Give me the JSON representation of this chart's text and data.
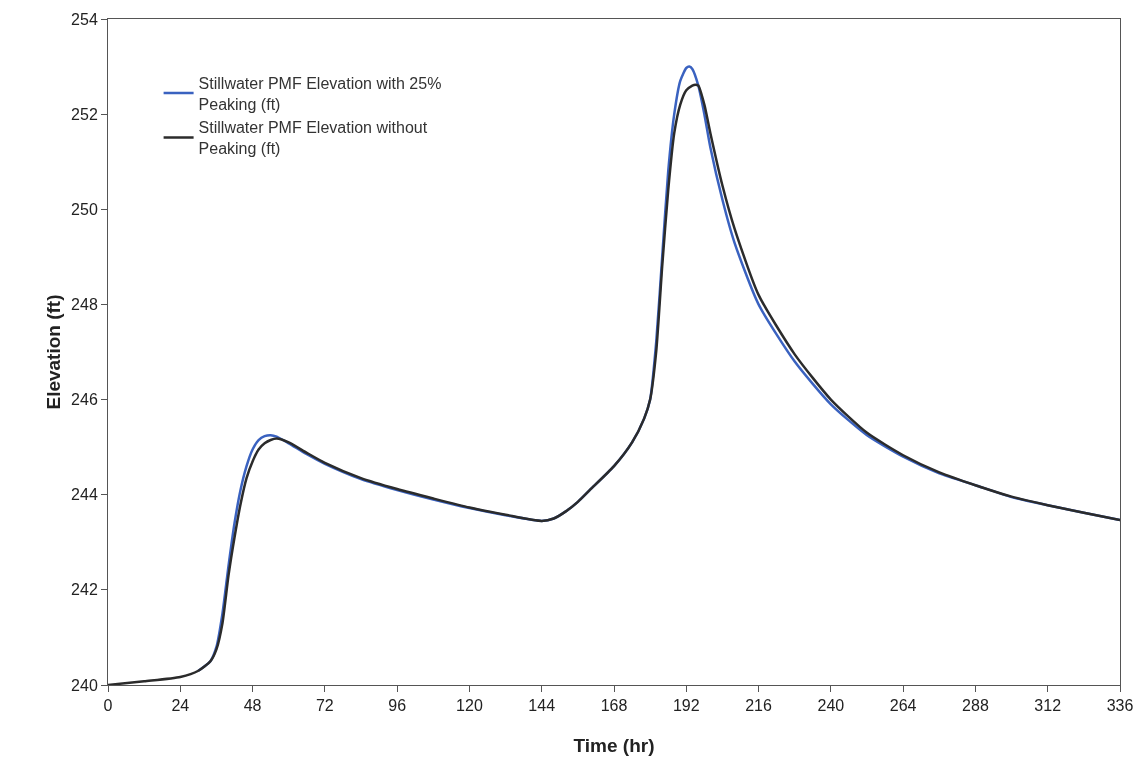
{
  "chart_data": {
    "type": "line",
    "xlabel": "Time (hr)",
    "ylabel": "Elevation (ft)",
    "xlim": [
      0,
      336
    ],
    "xticks": [
      0,
      24,
      48,
      72,
      96,
      120,
      144,
      168,
      192,
      216,
      240,
      264,
      288,
      312,
      336
    ],
    "ylim": [
      240,
      254
    ],
    "yticks": [
      240,
      242,
      244,
      246,
      248,
      250,
      252,
      254
    ],
    "grid": false,
    "legend": "top left",
    "marker": "none",
    "line_style": "solid",
    "series": [
      {
        "name": "Stillwater PMF Elevation with 25% Peaking (ft)",
        "color": "#3a62c0",
        "x": [
          30,
          34,
          36,
          38,
          40,
          42,
          44,
          46,
          48,
          50,
          52,
          54,
          56,
          60,
          66,
          72,
          84,
          96,
          108,
          120,
          132,
          144,
          148,
          152,
          156,
          160,
          168,
          174,
          178,
          180,
          182,
          184,
          186,
          188,
          190,
          192,
          193,
          194,
          196,
          198,
          200,
          204,
          208,
          216,
          228,
          240,
          252,
          264,
          276,
          288,
          300,
          312,
          324,
          336
        ],
        "values": [
          240.3,
          240.5,
          240.8,
          241.5,
          242.5,
          243.4,
          244.1,
          244.6,
          244.95,
          245.15,
          245.23,
          245.25,
          245.22,
          245.08,
          244.85,
          244.65,
          244.33,
          244.1,
          243.9,
          243.72,
          243.57,
          243.45,
          243.5,
          243.65,
          243.85,
          244.1,
          244.6,
          245.1,
          245.6,
          246.0,
          247.2,
          249.0,
          250.8,
          252.0,
          252.7,
          252.97,
          253.0,
          252.95,
          252.6,
          252.0,
          251.3,
          250.2,
          249.3,
          248.0,
          246.8,
          245.9,
          245.25,
          244.8,
          244.45,
          244.2,
          243.95,
          243.78,
          243.62,
          243.47
        ]
      },
      {
        "name": "Stillwater PMF Elevation without Peaking (ft)",
        "color": "#2b2b2b",
        "x": [
          0,
          12,
          24,
          30,
          34,
          36,
          38,
          40,
          42,
          44,
          46,
          48,
          50,
          52,
          54,
          56,
          60,
          66,
          72,
          84,
          96,
          108,
          120,
          132,
          144,
          148,
          152,
          156,
          160,
          168,
          174,
          178,
          180,
          182,
          184,
          186,
          188,
          190,
          192,
          194,
          195,
          196,
          198,
          200,
          204,
          208,
          216,
          228,
          240,
          252,
          264,
          276,
          288,
          300,
          312,
          324,
          336
        ],
        "values": [
          240.0,
          240.08,
          240.17,
          240.3,
          240.5,
          240.75,
          241.3,
          242.3,
          243.1,
          243.8,
          244.35,
          244.7,
          244.95,
          245.08,
          245.15,
          245.18,
          245.1,
          244.88,
          244.67,
          244.35,
          244.12,
          243.92,
          243.73,
          243.58,
          243.45,
          243.5,
          243.65,
          243.85,
          244.1,
          244.6,
          245.1,
          245.6,
          246.0,
          247.0,
          248.8,
          250.4,
          251.6,
          252.2,
          252.5,
          252.6,
          252.62,
          252.6,
          252.2,
          251.6,
          250.5,
          249.6,
          248.2,
          246.95,
          246.0,
          245.3,
          244.83,
          244.47,
          244.2,
          243.96,
          243.78,
          243.62,
          243.47
        ]
      }
    ]
  }
}
